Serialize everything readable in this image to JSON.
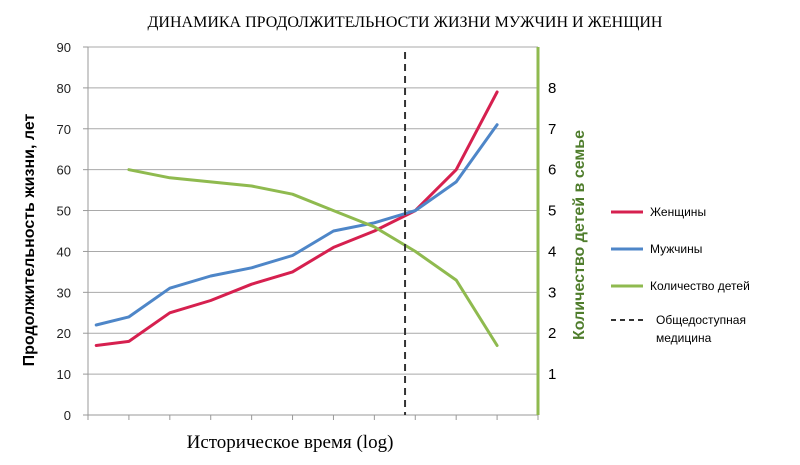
{
  "chart_data": {
    "type": "line",
    "title": "ДИНАМИКА ПРОДОЛЖИТЕЛЬНОСТИ ЖИЗНИ МУЖЧИН И ЖЕНЩИН",
    "xlabel": "Историческое время (log)",
    "ylabel": "Продолжительность жизни, лет",
    "ylabel_right": "Количество детей в семье",
    "ylim": [
      0,
      90
    ],
    "ylim_right": [
      0,
      9
    ],
    "y_ticks": [
      "0",
      "10",
      "20",
      "30",
      "40",
      "50",
      "60",
      "70",
      "80",
      "90"
    ],
    "y_ticks_right": [
      "1",
      "2",
      "3",
      "4",
      "5",
      "6",
      "7",
      "8"
    ],
    "x_categories": 11,
    "grid": true,
    "legend_position": "right",
    "series": [
      {
        "name": "Женщины",
        "axis": "left",
        "color": "#d6204f",
        "x": [
          0.2,
          1.0,
          2.0,
          3.0,
          4.0,
          5.0,
          6.0,
          7.0,
          8.0,
          9.0,
          10.0
        ],
        "values": [
          17,
          18,
          25,
          28,
          32,
          35,
          41,
          45,
          50,
          60,
          79
        ]
      },
      {
        "name": "Мужчины",
        "axis": "left",
        "color": "#4e86c8",
        "x": [
          0.2,
          1.0,
          2.0,
          3.0,
          4.0,
          5.0,
          6.0,
          7.0,
          8.0,
          9.0,
          10.0
        ],
        "values": [
          22,
          24,
          31,
          34,
          36,
          39,
          45,
          47,
          50,
          57,
          71
        ]
      },
      {
        "name": "Количество детей",
        "axis": "right",
        "color": "#8fba4f",
        "x": [
          1.0,
          2.0,
          3.0,
          4.0,
          5.0,
          6.0,
          7.0,
          8.0,
          9.0,
          10.0
        ],
        "values": [
          6.0,
          5.8,
          5.7,
          5.6,
          5.4,
          5.0,
          4.6,
          4.0,
          3.3,
          1.7
        ]
      }
    ],
    "marker": {
      "name": "Общедоступная медицина",
      "label_lines": [
        "Общедоступная",
        "медицина"
      ],
      "x": 7.75,
      "style": "dashed",
      "color": "#333333"
    }
  }
}
